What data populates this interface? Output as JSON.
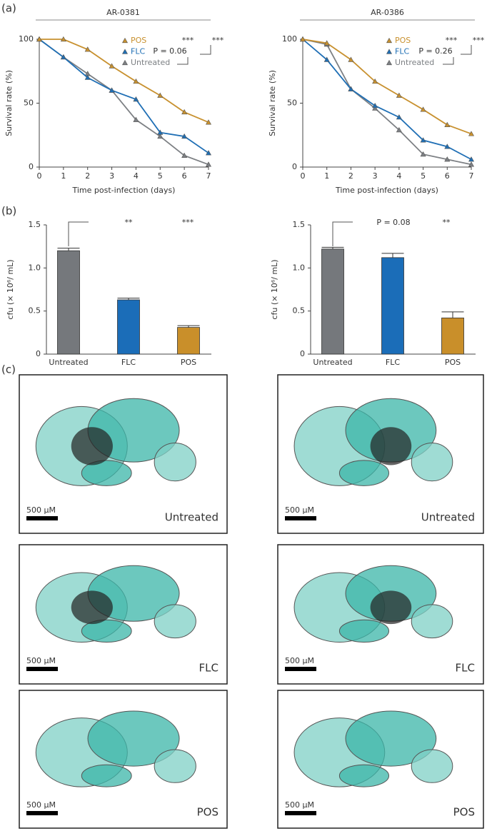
{
  "chart_data": [
    {
      "type": "line",
      "title": "AR-0381",
      "x": [
        0,
        1,
        2,
        3,
        4,
        5,
        6,
        7
      ],
      "xlim": [
        0,
        7
      ],
      "xticks": [
        0,
        1,
        2,
        3,
        4,
        5,
        6,
        7
      ],
      "ylim": [
        0,
        100
      ],
      "yticks": [
        0,
        50,
        100
      ],
      "xlabel": "Time post-infection (days)",
      "ylabel": "Survival rate (%)",
      "series": [
        {
          "name": "POS",
          "color": "#c8912f",
          "values": [
            100,
            100,
            92,
            79,
            67,
            56,
            43,
            35
          ]
        },
        {
          "name": "FLC",
          "color": "#1f6fb5",
          "values": [
            100,
            86,
            70,
            60,
            53,
            27,
            24,
            11
          ]
        },
        {
          "name": "Untreated",
          "color": "#7d8084",
          "values": [
            100,
            86,
            73,
            60,
            37,
            24,
            9,
            2
          ]
        }
      ],
      "annotations": [
        "***",
        "P = 0.06",
        "***"
      ]
    },
    {
      "type": "line",
      "title": "AR-0386",
      "x": [
        0,
        1,
        2,
        3,
        4,
        5,
        6,
        7
      ],
      "xlim": [
        0,
        7
      ],
      "xticks": [
        0,
        1,
        2,
        3,
        4,
        5,
        6,
        7
      ],
      "ylim": [
        0,
        100
      ],
      "yticks": [
        0,
        50,
        100
      ],
      "xlabel": "Time post-infection (days)",
      "ylabel": "Survival rate (%)",
      "series": [
        {
          "name": "POS",
          "color": "#c8912f",
          "values": [
            100,
            97,
            84,
            67,
            56,
            45,
            33,
            26
          ]
        },
        {
          "name": "FLC",
          "color": "#1f6fb5",
          "values": [
            100,
            84,
            61,
            48,
            39,
            21,
            16,
            6
          ]
        },
        {
          "name": "Untreated",
          "color": "#7d8084",
          "values": [
            100,
            96,
            61,
            46,
            29,
            10,
            6,
            2
          ]
        }
      ],
      "annotations": [
        "***",
        "P = 0.26",
        "***"
      ]
    },
    {
      "type": "bar",
      "categories": [
        "Untreated",
        "FLC",
        "POS"
      ],
      "values": [
        1.2,
        0.63,
        0.31
      ],
      "errors": [
        0.03,
        0.02,
        0.02
      ],
      "colors": [
        "#75787c",
        "#1b6db8",
        "#c98f2a"
      ],
      "ylim": [
        0,
        1.5
      ],
      "yticks": [
        0,
        0.5,
        {
          "value": 1,
          "label": "1.0"
        },
        1.5
      ],
      "ylabel": "cfu (× 10⁶/ mL)",
      "annotations": [
        "**",
        "***"
      ]
    },
    {
      "type": "bar",
      "categories": [
        "Untreated",
        "FLC",
        "POS"
      ],
      "values": [
        1.22,
        1.12,
        0.42
      ],
      "errors": [
        0.02,
        0.05,
        0.07
      ],
      "colors": [
        "#75787c",
        "#1b6db8",
        "#c98f2a"
      ],
      "ylim": [
        0,
        1.5
      ],
      "yticks": [
        0,
        0.5,
        {
          "value": 1,
          "label": "1.0"
        },
        1.5
      ],
      "ylabel": "cfu (× 10⁶/ mL)",
      "annotations": [
        "P = 0.08",
        "**"
      ]
    }
  ],
  "panel_labels": [
    "(a)",
    "(b)",
    "(c)"
  ],
  "micrographs": {
    "scale_bar": "500 μM",
    "rows": [
      "Untreated",
      "FLC",
      "POS"
    ]
  }
}
